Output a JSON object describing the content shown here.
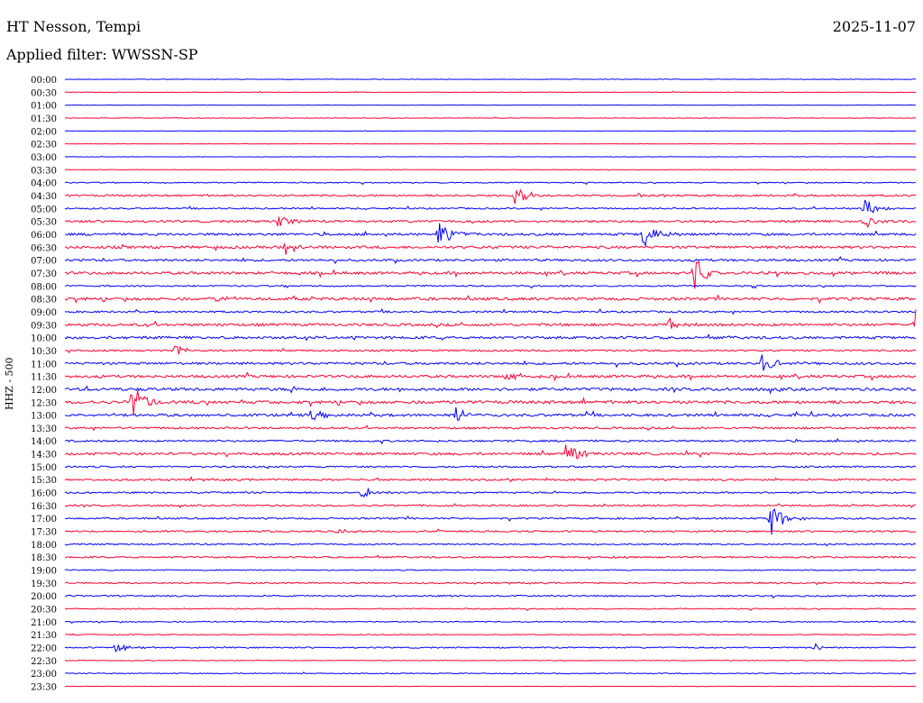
{
  "header": {
    "station": "HT Nesson, Tempi",
    "date": "2025-11-07",
    "filter": "Applied filter: WWSSN-SP"
  },
  "chart_data": {
    "type": "line",
    "title": "HT Nesson, Tempi",
    "ylabel": "HHZ - 500",
    "row_labels": [
      "00:00",
      "00:30",
      "01:00",
      "01:30",
      "02:00",
      "02:30",
      "03:00",
      "03:30",
      "04:00",
      "04:30",
      "05:00",
      "05:30",
      "06:00",
      "06:30",
      "07:00",
      "07:30",
      "08:00",
      "08:30",
      "09:00",
      "09:30",
      "10:00",
      "10:30",
      "11:00",
      "11:30",
      "12:00",
      "12:30",
      "13:00",
      "13:30",
      "14:00",
      "14:30",
      "15:00",
      "15:30",
      "16:00",
      "16:30",
      "17:00",
      "17:30",
      "18:00",
      "18:30",
      "19:00",
      "19:30",
      "20:00",
      "20:30",
      "21:00",
      "21:30",
      "22:00",
      "22:30",
      "23:00",
      "23:30"
    ],
    "colors": {
      "even_rows": "#0000ff",
      "odd_rows": "#ff0033"
    },
    "noise_level": [
      0.3,
      0.3,
      0.2,
      0.3,
      0.2,
      0.2,
      0.2,
      0.3,
      0.6,
      1.0,
      0.8,
      1.2,
      1.3,
      1.4,
      1.2,
      1.4,
      0.8,
      1.5,
      1.0,
      1.4,
      1.4,
      0.9,
      1.3,
      1.4,
      1.6,
      1.6,
      1.4,
      1.1,
      1.0,
      1.3,
      0.9,
      1.0,
      0.9,
      0.9,
      0.9,
      0.9,
      0.8,
      0.9,
      0.6,
      0.8,
      0.8,
      0.6,
      0.6,
      0.5,
      0.7,
      0.4,
      0.5,
      0.2
    ],
    "events": [
      {
        "row": 9,
        "x": 0.53,
        "amp": 14
      },
      {
        "row": 9,
        "x": 0.67,
        "amp": 4
      },
      {
        "row": 10,
        "x": 0.94,
        "amp": 14
      },
      {
        "row": 11,
        "x": 0.25,
        "amp": 10
      },
      {
        "row": 11,
        "x": 0.94,
        "amp": 8
      },
      {
        "row": 12,
        "x": 0.44,
        "amp": 20
      },
      {
        "row": 12,
        "x": 0.68,
        "amp": 18
      },
      {
        "row": 13,
        "x": 0.26,
        "amp": 12
      },
      {
        "row": 15,
        "x": 0.74,
        "amp": 20
      },
      {
        "row": 17,
        "x": 0.18,
        "amp": 6
      },
      {
        "row": 19,
        "x": 0.71,
        "amp": 8
      },
      {
        "row": 19,
        "x": 1.0,
        "amp": 18
      },
      {
        "row": 21,
        "x": 0.13,
        "amp": 7
      },
      {
        "row": 22,
        "x": 0.82,
        "amp": 12
      },
      {
        "row": 23,
        "x": 0.52,
        "amp": 7
      },
      {
        "row": 25,
        "x": 0.08,
        "amp": 22
      },
      {
        "row": 26,
        "x": 0.46,
        "amp": 12
      },
      {
        "row": 26,
        "x": 0.29,
        "amp": 6
      },
      {
        "row": 29,
        "x": 0.59,
        "amp": 16
      },
      {
        "row": 32,
        "x": 0.35,
        "amp": 8
      },
      {
        "row": 34,
        "x": 0.83,
        "amp": 20
      },
      {
        "row": 35,
        "x": 0.32,
        "amp": 3
      },
      {
        "row": 44,
        "x": 0.06,
        "amp": 6
      },
      {
        "row": 44,
        "x": 0.88,
        "amp": 5
      }
    ]
  }
}
